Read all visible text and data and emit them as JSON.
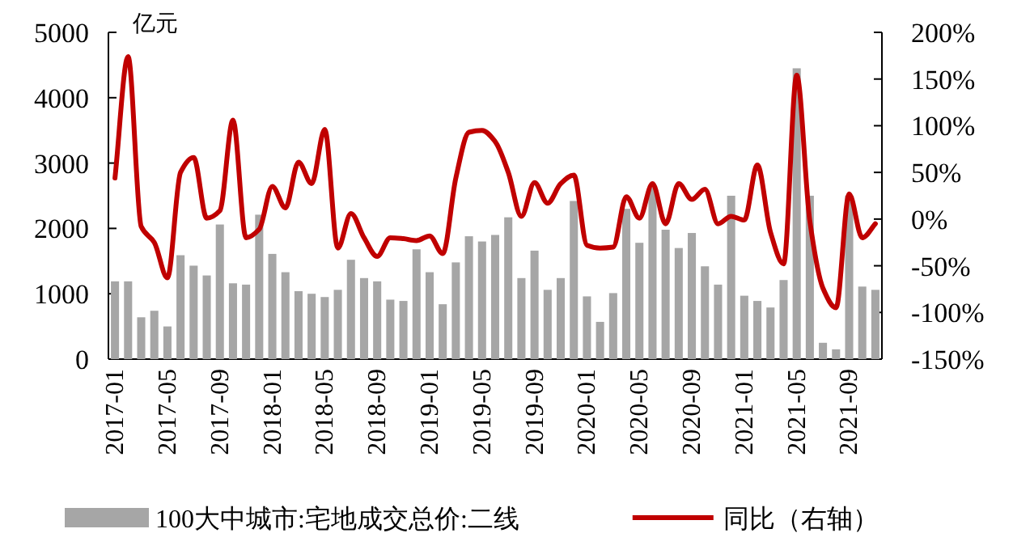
{
  "chart_data": {
    "type": "bar",
    "ylabel": "亿元",
    "legend": "bottom",
    "categories": [
      "2017-01",
      null,
      null,
      null,
      "2017-05",
      null,
      null,
      null,
      "2017-09",
      null,
      null,
      null,
      "2018-01",
      null,
      null,
      null,
      "2018-05",
      null,
      null,
      null,
      "2018-09",
      null,
      null,
      null,
      "2019-01",
      null,
      null,
      null,
      "2019-05",
      null,
      null,
      null,
      "2019-09",
      null,
      null,
      null,
      "2020-01",
      null,
      null,
      null,
      "2020-05",
      null,
      null,
      null,
      "2020-09",
      null,
      null,
      null,
      "2021-01",
      null,
      null,
      null,
      "2021-05",
      null,
      null,
      null,
      "2021-09",
      null,
      null
    ],
    "ylim": [
      0,
      5000
    ],
    "yticks": [
      0,
      1000,
      2000,
      3000,
      4000,
      5000
    ],
    "y2lim": [
      -150,
      200
    ],
    "y2ticks": [
      {
        "value": -150,
        "label": "-150%"
      },
      {
        "value": -100,
        "label": "-100%"
      },
      {
        "value": -50,
        "label": "-50%"
      },
      {
        "value": 0,
        "label": "0%"
      },
      {
        "value": 50,
        "label": "50%"
      },
      {
        "value": 100,
        "label": "100%"
      },
      {
        "value": 150,
        "label": "150%"
      },
      {
        "value": 200,
        "label": "200%"
      }
    ],
    "series": [
      {
        "name": "100大中城市:宅地成交总价:二线",
        "color": "#a6a6a6",
        "values": [
          1190,
          1190,
          640,
          740,
          500,
          1590,
          1430,
          1280,
          2060,
          1160,
          1140,
          2210,
          1610,
          1330,
          1040,
          1000,
          950,
          1060,
          1520,
          1240,
          1190,
          910,
          890,
          1680,
          1330,
          840,
          1480,
          1880,
          1800,
          1900,
          2170,
          1240,
          1660,
          1060,
          1240,
          2420,
          960,
          570,
          1010,
          2300,
          1780,
          2620,
          1980,
          1700,
          1930,
          1420,
          1140,
          2500,
          970,
          890,
          790,
          1210,
          4450,
          2500,
          250,
          150,
          2500,
          1110,
          1060
        ]
      },
      {
        "name": "同比（右轴）",
        "type": "line",
        "axis": "y2",
        "color": "#c00000",
        "values": [
          44,
          174,
          -8,
          -25,
          -63,
          50,
          66,
          1,
          9,
          106,
          -20,
          -11,
          35,
          12,
          61,
          38,
          96,
          -31,
          6,
          -20,
          -40,
          -20,
          -21,
          -23,
          -18,
          -37,
          44,
          93,
          95,
          83,
          50,
          3,
          39,
          17,
          38,
          47,
          -28,
          -31,
          -30,
          24,
          1,
          38,
          -5,
          38,
          21,
          32,
          -5,
          3,
          -1,
          58,
          -14,
          -48,
          154,
          -2,
          -74,
          -95,
          27,
          -20,
          -5
        ]
      }
    ]
  }
}
